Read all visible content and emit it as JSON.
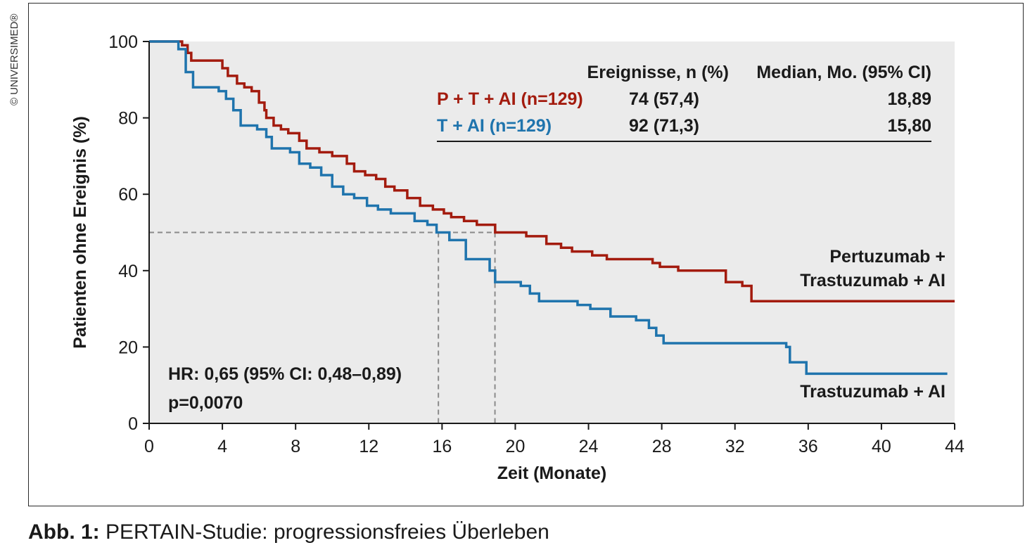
{
  "copyright": "© UNIVERSIMED®",
  "caption": {
    "label": "Abb. 1:",
    "text": " PERTAIN-Studie: progressionsfreies Überleben"
  },
  "chart_data": {
    "type": "line",
    "xlabel": "Zeit (Monate)",
    "ylabel": "Patienten ohne Ereignis (%)",
    "xlim": [
      0,
      44
    ],
    "ylim": [
      0,
      100
    ],
    "xticks": [
      0,
      4,
      8,
      12,
      16,
      20,
      24,
      28,
      32,
      36,
      40,
      44
    ],
    "yticks": [
      0,
      20,
      40,
      60,
      80,
      100
    ],
    "grid": false,
    "background": "#ebebeb",
    "table": {
      "headers": [
        "Ereignisse, n (%)",
        "Median, Mo. (95% CI)"
      ],
      "rows": [
        {
          "label": "P + T + AI (n=129)",
          "events": "74 (57,4)",
          "median": "18,89",
          "color": "#a31b0e"
        },
        {
          "label": "T + AI (n=129)",
          "events": "92 (71,3)",
          "median": "15,80",
          "color": "#1f74ad"
        }
      ]
    },
    "annotations": {
      "hr": "HR: 0,65 (95% CI: 0,48–0,89)",
      "p": "p=0,0070",
      "label_ptai_line1": "Pertuzumab +",
      "label_ptai_line2": "Trastuzumab + AI",
      "label_tai": "Trastuzumab + AI"
    },
    "medians": {
      "y": 50,
      "x": [
        15.8,
        18.89
      ]
    },
    "series": [
      {
        "color": "#a31b0e",
        "x": [
          0,
          1.8,
          2.1,
          2.3,
          4.0,
          4.3,
          4.8,
          5.2,
          5.6,
          6.0,
          6.3,
          6.4,
          6.8,
          7.2,
          7.6,
          8.2,
          8.6,
          9.3,
          10.0,
          10.8,
          11.2,
          11.8,
          12.4,
          12.9,
          13.4,
          14.1,
          14.8,
          15.5,
          16.1,
          16.5,
          17.2,
          17.9,
          18.9,
          20.6,
          21.7,
          22.5,
          23.1,
          24.2,
          25.0,
          27.5,
          27.9,
          28.9,
          31.5,
          32.4,
          32.9,
          44.0
        ],
        "y": [
          100,
          99,
          97,
          95,
          93,
          91,
          89,
          88,
          87,
          84,
          82,
          80,
          78,
          77,
          76,
          74,
          72,
          71,
          70,
          68,
          66,
          65,
          64,
          62,
          61,
          59,
          57,
          56,
          55,
          54,
          53,
          52,
          50,
          49,
          47,
          46,
          45,
          44,
          43,
          42,
          41,
          40,
          37,
          36,
          32,
          32
        ]
      },
      {
        "color": "#1f74ad",
        "x": [
          0,
          1.6,
          2.0,
          2.4,
          3.8,
          4.2,
          4.6,
          5.0,
          5.9,
          6.4,
          6.7,
          7.7,
          8.2,
          8.8,
          9.4,
          10.0,
          10.6,
          11.2,
          11.9,
          12.5,
          13.2,
          14.5,
          15.2,
          15.7,
          16.4,
          17.3,
          18.6,
          18.9,
          20.3,
          20.8,
          21.3,
          23.4,
          24.1,
          25.2,
          26.6,
          27.3,
          27.7,
          28.1,
          34.8,
          35.0,
          35.9,
          43.6
        ],
        "y": [
          100,
          98,
          92,
          88,
          87,
          85,
          82,
          78,
          77,
          75,
          72,
          71,
          68,
          67,
          65,
          62,
          60,
          59,
          57,
          56,
          55,
          53,
          52,
          50,
          48,
          43,
          40,
          37,
          36,
          34,
          32,
          31,
          30,
          28,
          27,
          25,
          23,
          21,
          20,
          16,
          13,
          13
        ]
      }
    ]
  }
}
